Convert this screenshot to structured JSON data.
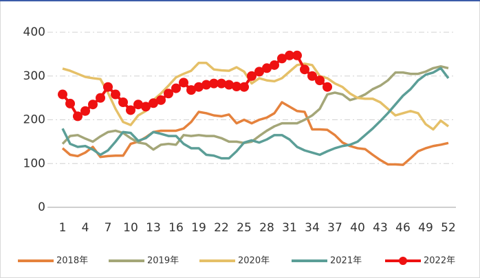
{
  "chart_data": {
    "type": "line",
    "x": [
      1,
      2,
      3,
      4,
      5,
      6,
      7,
      8,
      9,
      10,
      11,
      12,
      13,
      14,
      15,
      16,
      17,
      18,
      19,
      20,
      21,
      22,
      23,
      24,
      25,
      26,
      27,
      28,
      29,
      30,
      31,
      32,
      33,
      34,
      35,
      36,
      37,
      38,
      39,
      40,
      41,
      42,
      43,
      44,
      45,
      46,
      47,
      48,
      49,
      50,
      51,
      52
    ],
    "xlim": [
      -1,
      53
    ],
    "xticks": [
      1,
      4,
      7,
      10,
      13,
      16,
      19,
      22,
      25,
      28,
      31,
      34,
      37,
      40,
      43,
      46,
      49,
      52
    ],
    "ylim": [
      0,
      400
    ],
    "yticks": [
      0,
      100,
      200,
      300,
      400
    ],
    "grid": true,
    "legend": "bottom",
    "series": [
      {
        "name": "2018年",
        "color": "#e5823d",
        "marker": false,
        "values": [
          135,
          120,
          117,
          125,
          138,
          115,
          117,
          118,
          118,
          145,
          150,
          160,
          172,
          175,
          175,
          175,
          180,
          195,
          218,
          215,
          210,
          208,
          212,
          192,
          200,
          192,
          200,
          205,
          215,
          240,
          230,
          220,
          218,
          178,
          178,
          177,
          165,
          148,
          140,
          135,
          133,
          120,
          108,
          98,
          98,
          97,
          112,
          128,
          135,
          140,
          143,
          147
        ]
      },
      {
        "name": "2019年",
        "color": "#a4a678",
        "marker": false,
        "values": [
          145,
          163,
          165,
          157,
          150,
          162,
          172,
          175,
          170,
          158,
          148,
          145,
          132,
          143,
          145,
          143,
          165,
          163,
          165,
          163,
          163,
          158,
          150,
          150,
          147,
          150,
          163,
          175,
          185,
          192,
          192,
          192,
          200,
          210,
          225,
          258,
          262,
          258,
          245,
          250,
          258,
          270,
          278,
          290,
          308,
          308,
          305,
          305,
          310,
          318,
          322,
          318
        ]
      },
      {
        "name": "2020年",
        "color": "#e5c068",
        "marker": false,
        "values": [
          317,
          312,
          305,
          298,
          295,
          293,
          262,
          225,
          195,
          188,
          210,
          220,
          245,
          260,
          278,
          297,
          305,
          312,
          330,
          330,
          315,
          313,
          312,
          320,
          310,
          283,
          295,
          290,
          288,
          295,
          310,
          325,
          328,
          325,
          300,
          295,
          283,
          275,
          260,
          250,
          248,
          248,
          240,
          225,
          210,
          215,
          220,
          215,
          190,
          178,
          198,
          185
        ]
      },
      {
        "name": "2021年",
        "color": "#5b9e97",
        "marker": false,
        "values": [
          180,
          145,
          138,
          140,
          132,
          120,
          130,
          150,
          172,
          170,
          152,
          158,
          172,
          168,
          163,
          163,
          145,
          135,
          135,
          120,
          118,
          112,
          112,
          128,
          148,
          153,
          148,
          155,
          165,
          165,
          155,
          138,
          130,
          125,
          120,
          128,
          135,
          140,
          143,
          150,
          165,
          180,
          197,
          215,
          235,
          255,
          270,
          290,
          303,
          308,
          318,
          295
        ]
      },
      {
        "name": "2022年",
        "color": "#ee1111",
        "marker": true,
        "values": [
          258,
          237,
          208,
          220,
          235,
          250,
          275,
          258,
          240,
          222,
          235,
          230,
          238,
          245,
          260,
          272,
          285,
          268,
          275,
          280,
          283,
          283,
          280,
          276,
          275,
          300,
          310,
          318,
          325,
          340,
          347,
          347,
          315,
          300,
          290,
          275,
          null,
          null,
          null,
          null,
          null,
          null,
          null,
          null,
          null,
          null,
          null,
          null,
          null,
          null,
          null,
          null
        ]
      }
    ]
  }
}
